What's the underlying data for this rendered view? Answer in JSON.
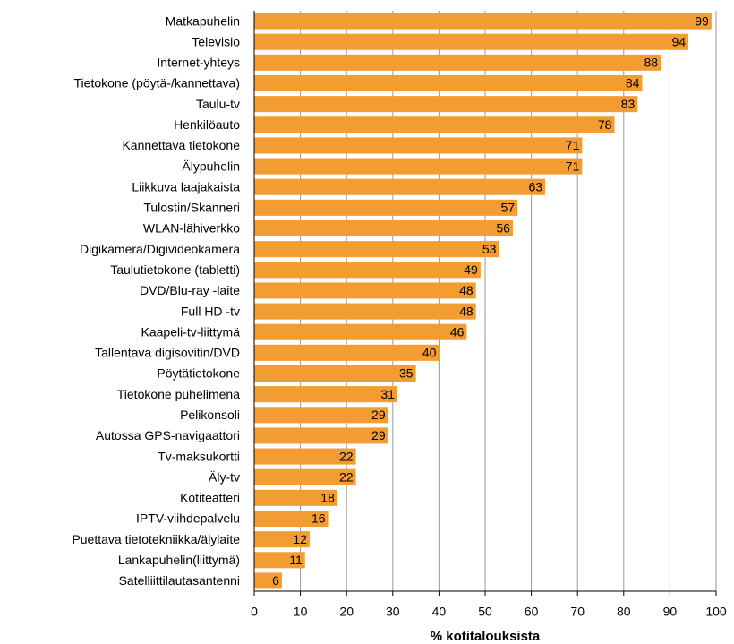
{
  "chart_data": {
    "type": "bar",
    "orientation": "horizontal",
    "x_label": "% kotitalouksista",
    "categories": [
      "Matkapuhelin",
      "Televisio",
      "Internet-yhteys",
      "Tietokone (pöytä-/kannettava)",
      "Taulu-tv",
      "Henkilöauto",
      "Kannettava tietokone",
      "Älypuhelin",
      "Liikkuva laajakaista",
      "Tulostin/Skanneri",
      "WLAN-lähiverkko",
      "Digikamera/Digivideokamera",
      "Taulutietokone (tabletti)",
      "DVD/Blu-ray -laite",
      "Full HD -tv",
      "Kaapeli-tv-liittymä",
      "Tallentava digisovitin/DVD",
      "Pöytätietokone",
      "Tietokone puhelimena",
      "Pelikonsoli",
      "Autossa GPS-navigaattori",
      "Tv-maksukortti",
      "Äly-tv",
      "Kotiteatteri",
      "IPTV-viihdepalvelu",
      "Puettava tietotekniikka/älylaite",
      "Lankapuhelin(liittymä)",
      "Satelliittilautasantenni"
    ],
    "values": [
      99,
      94,
      88,
      84,
      83,
      78,
      71,
      71,
      63,
      57,
      56,
      53,
      49,
      48,
      48,
      46,
      40,
      35,
      31,
      29,
      29,
      22,
      22,
      18,
      16,
      12,
      11,
      6
    ],
    "color": "#f39c32",
    "xlim": [
      0,
      100
    ],
    "xticks": [
      0,
      10,
      20,
      30,
      40,
      50,
      60,
      70,
      80,
      90,
      100
    ],
    "grid": true
  }
}
